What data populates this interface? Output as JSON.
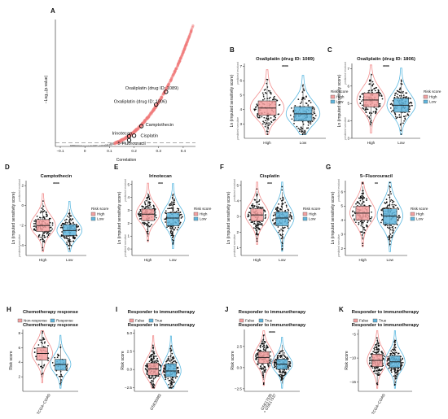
{
  "colors": {
    "high": "#f28e8e",
    "low": "#5bb8e0",
    "highBox": "#f4a0a0",
    "lowBox": "#5fb5dd",
    "scatter": "#f27a7a"
  },
  "panelA": {
    "letter": "A",
    "xlabel": "Correlation",
    "ylabel": "−Log₁₀(p.value)",
    "xticks": [
      "−0.1",
      "0",
      "0.1",
      "0.2",
      "0.3",
      "0.4"
    ],
    "xtick_values": [
      -0.1,
      0,
      0.1,
      0.2,
      0.3,
      0.4
    ],
    "xlim": [
      -0.12,
      0.45
    ],
    "ylim": [
      0,
      100
    ],
    "threshold": 3,
    "annotations": [
      {
        "label": "Oxaliplatin (drug ID: 1089)",
        "x": 0.33,
        "y": 43
      },
      {
        "label": "Oxaliplatin (drug ID: 1806)",
        "x": 0.29,
        "y": 33
      },
      {
        "label": "Camptothecin",
        "x": 0.23,
        "y": 16
      },
      {
        "label": "Irinotecan",
        "x": 0.18,
        "y": 8
      },
      {
        "label": "Cisplatin",
        "x": 0.2,
        "y": 8.5
      },
      {
        "label": "5-Fluorouracil",
        "x": 0.18,
        "y": 5
      }
    ]
  },
  "legend_risk": {
    "title": "Risk score",
    "high": "High",
    "low": "Low"
  },
  "ylabel_sens": "Ln (imputed sensitivity score)",
  "side_top": "predicted resistant",
  "side_bot": "predicted sensitive",
  "chart_data": [
    {
      "type": "violin",
      "panel": "B",
      "title": "Oxaliplatin (drug ID: 1089)",
      "categories": [
        "High",
        "Low"
      ],
      "ylim": [
        2,
        7.2
      ],
      "yticks": [
        3,
        4,
        5,
        6,
        7
      ],
      "sig": "****",
      "medians": [
        4.1,
        3.7
      ],
      "q1": [
        3.6,
        3.2
      ],
      "q3": [
        4.6,
        4.2
      ]
    },
    {
      "type": "violin",
      "panel": "C",
      "title": "Oxaliplatin (drug ID: 1806)",
      "categories": [
        "High",
        "Low"
      ],
      "ylim": [
        3,
        7.3
      ],
      "yticks": [
        3,
        4,
        5,
        6,
        7
      ],
      "sig": "****",
      "medians": [
        5.2,
        4.9
      ],
      "q1": [
        4.8,
        4.5
      ],
      "q3": [
        5.6,
        5.3
      ]
    },
    {
      "type": "violin",
      "panel": "D",
      "title": "Camptothecin",
      "categories": [
        "High",
        "Low"
      ],
      "ylim": [
        -5,
        2.5
      ],
      "yticks": [
        -4,
        -2,
        0,
        2
      ],
      "sig": "****",
      "medians": [
        -2.0,
        -2.5
      ],
      "q1": [
        -2.6,
        -3.0
      ],
      "q3": [
        -1.4,
        -1.9
      ]
    },
    {
      "type": "violin",
      "panel": "E",
      "title": "Irinotecan",
      "categories": [
        "High",
        "Low"
      ],
      "ylim": [
        -0.5,
        5.3
      ],
      "yticks": [
        0,
        1,
        2,
        3,
        4,
        5
      ],
      "sig": "***",
      "medians": [
        2.7,
        2.4
      ],
      "q1": [
        2.2,
        1.8
      ],
      "q3": [
        3.1,
        2.8
      ]
    },
    {
      "type": "violin",
      "panel": "F",
      "title": "Cisplatin",
      "categories": [
        "High",
        "Low"
      ],
      "ylim": [
        0.5,
        5.3
      ],
      "yticks": [
        1,
        2,
        3,
        4,
        5
      ],
      "sig": "***",
      "medians": [
        3.1,
        2.9
      ],
      "q1": [
        2.7,
        2.4
      ],
      "q3": [
        3.5,
        3.3
      ]
    },
    {
      "type": "violin",
      "panel": "G",
      "title": "5−Fluorouracil",
      "categories": [
        "High",
        "Low"
      ],
      "ylim": [
        1.5,
        6.8
      ],
      "yticks": [
        2,
        3,
        4,
        5,
        6
      ],
      "sig": "**",
      "medians": [
        4.5,
        4.3
      ],
      "q1": [
        4.0,
        3.7
      ],
      "q3": [
        5.0,
        4.8
      ]
    }
  ],
  "panelH": {
    "letter": "H",
    "title": "Chemotherapy response",
    "legend": [
      "Non-response",
      "Response"
    ],
    "xcat": "TCGA−COAD",
    "ylabel": "Risk score",
    "ylim": [
      0,
      8.5
    ],
    "yticks": [
      2,
      4,
      6,
      8
    ],
    "medians": [
      5.2,
      3.7
    ],
    "q1": [
      4.3,
      2.9
    ],
    "q3": [
      6.0,
      4.4
    ]
  },
  "panelI": {
    "letter": "I",
    "title": "Responder to immunotherapy",
    "legend": [
      "False",
      "True"
    ],
    "xcat": "GSE35982",
    "ylabel": "Risk score",
    "ylim": [
      -3,
      5.5
    ],
    "yticks": [
      -2.5,
      0.0,
      2.5,
      5.0
    ],
    "ytick_labels": [
      "−2.5",
      "0.0",
      "2.5",
      "5.0"
    ],
    "medians": [
      0.1,
      -0.2
    ],
    "q1": [
      -0.8,
      -1.0
    ],
    "q3": [
      0.9,
      0.8
    ]
  },
  "panelJ": {
    "letter": "J",
    "title": "Responder to immunotherapy",
    "legend": [
      "False",
      "True"
    ],
    "xcat": "GSE17536\n+ GSE17537",
    "xcat1": "GSE17536",
    "xcat2": "+ GSE17537",
    "ylabel": "Risk score",
    "ylim": [
      -2.8,
      4.5
    ],
    "yticks": [
      -2.5,
      0.0,
      2.5
    ],
    "ytick_labels": [
      "−2.5",
      "0.0",
      "2.5"
    ],
    "sig": "****",
    "medians": [
      1.2,
      0.4
    ],
    "q1": [
      0.5,
      -0.2
    ],
    "q3": [
      1.9,
      1.0
    ]
  },
  "panelK": {
    "letter": "K",
    "title": "Responder to immunotherapy",
    "legend": [
      "False",
      "True"
    ],
    "xcat": "TCGA−COAD",
    "ylabel": "Risk score",
    "ylim": [
      -17,
      -4
    ],
    "yticks": [
      -15,
      -10,
      -5
    ],
    "ytick_labels": [
      "−15",
      "−10",
      "−5"
    ],
    "medians": [
      -10.5,
      -10.8
    ],
    "q1": [
      -11.8,
      -12.0
    ],
    "q3": [
      -9.2,
      -9.5
    ]
  }
}
